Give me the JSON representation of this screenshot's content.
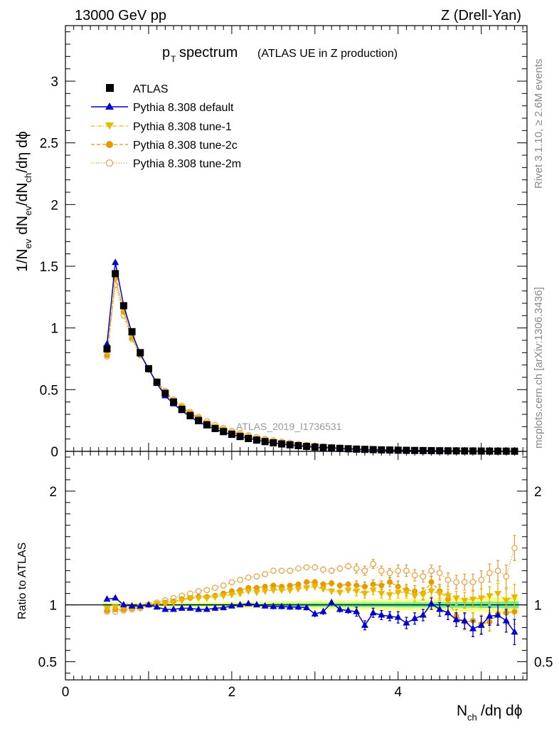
{
  "header": {
    "beam": "13000 GeV pp",
    "process": "Z (Drell-Yan)"
  },
  "side": {
    "rivet": "Rivet 3.1.10, ≥ 2.6M events",
    "mcplots": "mcplots.cern.ch [arXiv:1306.3436]"
  },
  "title": {
    "main_p": "p",
    "main_sub": "T",
    "main_rest": " spectrum",
    "paren": "(ATLAS UE in Z production)"
  },
  "analysis_label": "ATLAS_2019_I1736531",
  "xlabel": {
    "n": "N",
    "sub": "ch",
    "rest": "/dη dϕ"
  },
  "ylabel_top": "1/N_ev dN_ev/dN_ch/dη dϕ",
  "ylabel_bottom": "Ratio to ATLAS",
  "colors": {
    "atlas": "#000000",
    "default": "#0000cc",
    "tune1": "#e6b800",
    "tune2c": "#e69900",
    "tune2m": "#e6a040",
    "band_yellow": "#ffff88",
    "band_green": "#66ee99"
  },
  "chart_data": [
    {
      "type": "line",
      "panel": "main",
      "xlabel": "N_ch/dη dϕ",
      "ylabel": "1/N_ev dN_ev/dN_ch/dη dϕ",
      "xlim": [
        0,
        5.55
      ],
      "ylim": [
        0,
        3.45
      ],
      "xticks": [
        "0",
        "2",
        "4"
      ],
      "yticks": [
        "0",
        "0.5",
        "1",
        "1.5",
        "2",
        "2.5",
        "3"
      ],
      "legend_position": "top-left",
      "x": [
        0.5,
        0.6,
        0.7,
        0.8,
        0.9,
        1.0,
        1.1,
        1.2,
        1.3,
        1.4,
        1.5,
        1.6,
        1.7,
        1.8,
        1.9,
        2.0,
        2.1,
        2.2,
        2.3,
        2.4,
        2.5,
        2.6,
        2.7,
        2.8,
        2.9,
        3.0,
        3.1,
        3.2,
        3.3,
        3.4,
        3.5,
        3.6,
        3.7,
        3.8,
        3.9,
        4.0,
        4.1,
        4.2,
        4.3,
        4.4,
        4.5,
        4.6,
        4.7,
        4.8,
        4.9,
        5.0,
        5.1,
        5.2,
        5.3,
        5.4
      ],
      "series": [
        {
          "name": "ATLAS",
          "style": "data",
          "values": [
            0.83,
            1.44,
            1.18,
            0.97,
            0.8,
            0.67,
            0.56,
            0.47,
            0.4,
            0.34,
            0.29,
            0.25,
            0.215,
            0.185,
            0.16,
            0.138,
            0.12,
            0.104,
            0.091,
            0.079,
            0.069,
            0.06,
            0.053,
            0.046,
            0.04,
            0.035,
            0.031,
            0.027,
            0.024,
            0.021,
            0.018,
            0.016,
            0.014,
            0.012,
            0.011,
            0.0095,
            0.0083,
            0.0073,
            0.0064,
            0.0056,
            0.0049,
            0.0043,
            0.0038,
            0.0033,
            0.0029,
            0.0025,
            0.0022,
            0.0019,
            0.0017,
            0.0015
          ]
        },
        {
          "name": "Pythia 8.308 default",
          "style": "solid-triangle-up",
          "values": [
            0.87,
            1.53,
            1.18,
            0.96,
            0.79,
            0.67,
            0.55,
            0.45,
            0.385,
            0.33,
            0.28,
            0.24,
            0.207,
            0.18,
            0.156,
            0.137,
            0.12,
            0.105,
            0.091,
            0.078,
            0.068,
            0.059,
            0.052,
            0.045,
            0.039,
            0.032,
            0.029,
            0.028,
            0.023,
            0.02,
            0.017,
            0.013,
            0.013,
            0.011,
            0.01,
            0.0085,
            0.007,
            0.0064,
            0.0058,
            0.0057,
            0.0047,
            0.004,
            0.0033,
            0.0028,
            0.0023,
            0.002,
            0.002,
            0.0017,
            0.0015,
            0.0011
          ]
        },
        {
          "name": "Pythia 8.308 tune-1",
          "style": "dashdot-triangle-down",
          "values": [
            0.8,
            1.4,
            1.15,
            0.93,
            0.78,
            0.66,
            0.56,
            0.47,
            0.41,
            0.35,
            0.3,
            0.26,
            0.225,
            0.197,
            0.172,
            0.15,
            0.133,
            0.116,
            0.101,
            0.089,
            0.078,
            0.068,
            0.06,
            0.053,
            0.046,
            0.04,
            0.035,
            0.031,
            0.027,
            0.024,
            0.02,
            0.018,
            0.016,
            0.013,
            0.012,
            0.011,
            0.0092,
            0.008,
            0.007,
            0.0063,
            0.0053,
            0.0047,
            0.0041,
            0.0035,
            0.0031,
            0.0027,
            0.0024,
            0.0021,
            0.0018,
            0.0016
          ]
        },
        {
          "name": "Pythia 8.308 tune-2c",
          "style": "dashed-circle",
          "values": [
            0.78,
            1.4,
            1.13,
            0.92,
            0.78,
            0.67,
            0.56,
            0.48,
            0.41,
            0.36,
            0.31,
            0.27,
            0.23,
            0.2,
            0.178,
            0.155,
            0.137,
            0.12,
            0.105,
            0.092,
            0.081,
            0.071,
            0.062,
            0.054,
            0.047,
            0.041,
            0.036,
            0.032,
            0.028,
            0.024,
            0.021,
            0.018,
            0.016,
            0.014,
            0.012,
            0.011,
            0.0095,
            0.0082,
            0.0072,
            0.0063,
            0.0055,
            0.0048,
            0.0041,
            0.0036,
            0.0031,
            0.0027,
            0.0023,
            0.002,
            0.0017,
            0.0015
          ]
        },
        {
          "name": "Pythia 8.308 tune-2m",
          "style": "dotted-open-circle",
          "values": [
            0.77,
            1.35,
            1.1,
            0.91,
            0.78,
            0.67,
            0.57,
            0.49,
            0.42,
            0.37,
            0.32,
            0.28,
            0.245,
            0.215,
            0.19,
            0.167,
            0.148,
            0.131,
            0.116,
            0.102,
            0.09,
            0.079,
            0.07,
            0.061,
            0.053,
            0.046,
            0.04,
            0.035,
            0.031,
            0.027,
            0.024,
            0.021,
            0.018,
            0.016,
            0.014,
            0.012,
            0.011,
            0.0095,
            0.0083,
            0.0073,
            0.0064,
            0.0056,
            0.0049,
            0.0043,
            0.0037,
            0.0033,
            0.0029,
            0.0025,
            0.0022,
            0.002
          ]
        }
      ]
    },
    {
      "type": "line",
      "panel": "ratio",
      "xlabel": "N_ch/dη dϕ",
      "ylabel": "Ratio to ATLAS",
      "xlim": [
        0,
        5.55
      ],
      "ylim": [
        0.34,
        2.35
      ],
      "xticks": [
        "0",
        "2",
        "4"
      ],
      "yticks": [
        "0.5",
        "1",
        "2"
      ],
      "x": [
        0.5,
        0.6,
        0.7,
        0.8,
        0.9,
        1.0,
        1.1,
        1.2,
        1.3,
        1.4,
        1.5,
        1.6,
        1.7,
        1.8,
        1.9,
        2.0,
        2.1,
        2.2,
        2.3,
        2.4,
        2.5,
        2.6,
        2.7,
        2.8,
        2.9,
        3.0,
        3.1,
        3.2,
        3.3,
        3.4,
        3.5,
        3.6,
        3.7,
        3.8,
        3.9,
        4.0,
        4.1,
        4.2,
        4.3,
        4.4,
        4.5,
        4.6,
        4.7,
        4.8,
        4.9,
        5.0,
        5.1,
        5.2,
        5.3,
        5.4
      ],
      "band_yellow_halfwidth": [
        0.02,
        0.02,
        0.02,
        0.02,
        0.02,
        0.02,
        0.02,
        0.02,
        0.02,
        0.02,
        0.02,
        0.025,
        0.025,
        0.025,
        0.025,
        0.03,
        0.03,
        0.03,
        0.03,
        0.03,
        0.035,
        0.035,
        0.035,
        0.035,
        0.035,
        0.04,
        0.04,
        0.04,
        0.04,
        0.04,
        0.045,
        0.045,
        0.045,
        0.045,
        0.045,
        0.05,
        0.05,
        0.05,
        0.05,
        0.05,
        0.055,
        0.055,
        0.055,
        0.06,
        0.06,
        0.06,
        0.065,
        0.065,
        0.07,
        0.07
      ],
      "band_green_halfwidth": [
        0.008,
        0.008,
        0.008,
        0.008,
        0.008,
        0.008,
        0.008,
        0.008,
        0.008,
        0.008,
        0.01,
        0.01,
        0.01,
        0.01,
        0.01,
        0.012,
        0.012,
        0.012,
        0.012,
        0.012,
        0.015,
        0.015,
        0.015,
        0.015,
        0.015,
        0.018,
        0.018,
        0.018,
        0.018,
        0.018,
        0.02,
        0.02,
        0.02,
        0.02,
        0.02,
        0.022,
        0.022,
        0.022,
        0.022,
        0.022,
        0.025,
        0.025,
        0.025,
        0.025,
        0.025,
        0.028,
        0.028,
        0.028,
        0.03,
        0.03
      ],
      "series": [
        {
          "name": "Pythia 8.308 default",
          "values": [
            1.05,
            1.06,
            1.0,
            0.99,
            0.99,
            1.0,
            0.98,
            0.96,
            0.96,
            0.97,
            0.97,
            0.96,
            0.96,
            0.97,
            0.975,
            0.99,
            1.0,
            1.01,
            1.0,
            0.99,
            0.985,
            0.985,
            0.98,
            0.98,
            0.975,
            0.92,
            0.94,
            1.02,
            0.96,
            0.95,
            0.94,
            0.82,
            0.93,
            0.91,
            0.9,
            0.89,
            0.84,
            0.88,
            0.91,
            1.01,
            0.96,
            0.93,
            0.87,
            0.86,
            0.79,
            0.82,
            0.9,
            0.91,
            0.86,
            0.76
          ],
          "errors": [
            0.01,
            0.01,
            0.01,
            0.01,
            0.01,
            0.01,
            0.01,
            0.01,
            0.01,
            0.01,
            0.015,
            0.015,
            0.015,
            0.015,
            0.015,
            0.02,
            0.02,
            0.02,
            0.02,
            0.02,
            0.025,
            0.025,
            0.025,
            0.025,
            0.025,
            0.03,
            0.03,
            0.03,
            0.03,
            0.03,
            0.04,
            0.04,
            0.04,
            0.04,
            0.04,
            0.05,
            0.05,
            0.05,
            0.05,
            0.05,
            0.06,
            0.06,
            0.06,
            0.07,
            0.07,
            0.08,
            0.08,
            0.09,
            0.1,
            0.11
          ]
        },
        {
          "name": "Pythia 8.308 tune-1",
          "values": [
            0.97,
            0.98,
            0.98,
            0.97,
            0.98,
            1.0,
            1.01,
            1.01,
            1.02,
            1.04,
            1.06,
            1.06,
            1.06,
            1.07,
            1.08,
            1.09,
            1.1,
            1.12,
            1.11,
            1.12,
            1.13,
            1.13,
            1.13,
            1.14,
            1.15,
            1.16,
            1.14,
            1.12,
            1.11,
            1.13,
            1.12,
            1.1,
            1.13,
            1.1,
            1.09,
            1.11,
            1.11,
            1.08,
            1.09,
            1.12,
            1.1,
            1.08,
            1.06,
            1.04,
            1.05,
            1.06,
            1.08,
            1.1,
            1.04,
            1.07
          ],
          "errors": [
            0.01,
            0.01,
            0.01,
            0.01,
            0.01,
            0.01,
            0.01,
            0.01,
            0.01,
            0.01,
            0.015,
            0.015,
            0.015,
            0.015,
            0.015,
            0.02,
            0.02,
            0.02,
            0.02,
            0.02,
            0.025,
            0.025,
            0.025,
            0.025,
            0.025,
            0.03,
            0.03,
            0.03,
            0.03,
            0.03,
            0.04,
            0.04,
            0.04,
            0.04,
            0.04,
            0.05,
            0.05,
            0.05,
            0.05,
            0.05,
            0.06,
            0.06,
            0.06,
            0.07,
            0.07,
            0.08,
            0.08,
            0.09,
            0.1,
            0.11
          ]
        },
        {
          "name": "Pythia 8.308 tune-2c",
          "values": [
            0.95,
            0.96,
            0.96,
            0.97,
            0.98,
            1.0,
            1.01,
            1.02,
            1.03,
            1.05,
            1.06,
            1.07,
            1.07,
            1.08,
            1.1,
            1.12,
            1.13,
            1.15,
            1.15,
            1.16,
            1.17,
            1.16,
            1.17,
            1.18,
            1.2,
            1.2,
            1.18,
            1.19,
            1.17,
            1.18,
            1.17,
            1.16,
            1.18,
            1.17,
            1.2,
            1.16,
            1.13,
            1.12,
            1.1,
            1.2,
            1.12,
            1.05,
            0.9,
            0.85,
            0.86,
            0.83,
            0.85,
            0.92,
            0.93,
            0.94
          ],
          "errors": [
            0.01,
            0.01,
            0.01,
            0.01,
            0.01,
            0.01,
            0.01,
            0.01,
            0.01,
            0.01,
            0.015,
            0.015,
            0.015,
            0.015,
            0.015,
            0.02,
            0.02,
            0.02,
            0.02,
            0.02,
            0.025,
            0.025,
            0.025,
            0.025,
            0.025,
            0.03,
            0.03,
            0.03,
            0.03,
            0.03,
            0.04,
            0.04,
            0.04,
            0.04,
            0.04,
            0.05,
            0.05,
            0.05,
            0.05,
            0.05,
            0.06,
            0.06,
            0.06,
            0.07,
            0.07,
            0.08,
            0.08,
            0.09,
            0.1,
            0.11
          ]
        },
        {
          "name": "Pythia 8.308 tune-2m",
          "values": [
            0.94,
            0.94,
            0.95,
            0.96,
            0.97,
            1.0,
            1.02,
            1.04,
            1.06,
            1.08,
            1.1,
            1.12,
            1.13,
            1.15,
            1.17,
            1.2,
            1.22,
            1.24,
            1.25,
            1.27,
            1.3,
            1.3,
            1.3,
            1.32,
            1.33,
            1.33,
            1.31,
            1.3,
            1.32,
            1.34,
            1.32,
            1.3,
            1.36,
            1.3,
            1.28,
            1.3,
            1.3,
            1.26,
            1.25,
            1.3,
            1.28,
            1.22,
            1.2,
            1.2,
            1.2,
            1.22,
            1.28,
            1.3,
            1.25,
            1.5
          ],
          "errors": [
            0.01,
            0.01,
            0.01,
            0.01,
            0.01,
            0.01,
            0.01,
            0.01,
            0.01,
            0.01,
            0.015,
            0.015,
            0.015,
            0.015,
            0.015,
            0.02,
            0.02,
            0.02,
            0.02,
            0.02,
            0.025,
            0.025,
            0.025,
            0.025,
            0.025,
            0.03,
            0.03,
            0.03,
            0.03,
            0.03,
            0.04,
            0.04,
            0.04,
            0.04,
            0.04,
            0.05,
            0.05,
            0.05,
            0.05,
            0.05,
            0.06,
            0.06,
            0.06,
            0.07,
            0.07,
            0.08,
            0.08,
            0.09,
            0.1,
            0.11
          ]
        }
      ]
    }
  ]
}
